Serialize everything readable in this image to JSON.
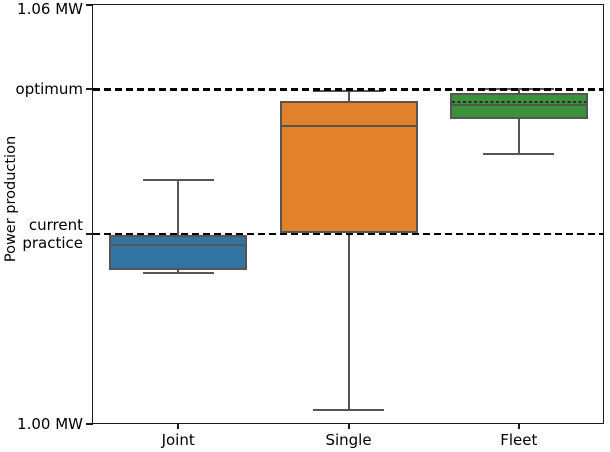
{
  "chart_data": {
    "type": "box",
    "title": "",
    "ylabel": "Power production",
    "xlabel": "",
    "unit": "MW",
    "ylim": [
      1.0,
      1.06
    ],
    "grid": false,
    "y_axis_ticks": [
      {
        "label": "1.06 MW",
        "value": 1.06
      },
      {
        "label": "optimum",
        "value": 1.0479
      },
      {
        "label": "current\npractice",
        "value": 1.0272
      },
      {
        "label": "1.00 MW",
        "value": 1.0
      }
    ],
    "reference_lines": [
      {
        "name": "optimum",
        "value": 1.0479,
        "style": "dashed",
        "color": "#000000"
      },
      {
        "name": "current-practice",
        "value": 1.0272,
        "style": "dashed",
        "color": "#000000"
      }
    ],
    "categories": [
      "Joint",
      "Single",
      "Fleet"
    ],
    "series": [
      {
        "name": "Joint",
        "color": "#3274a1",
        "whisker_low": 1.0216,
        "q1": 1.022,
        "median": 1.0256,
        "q3": 1.0271,
        "whisker_high": 1.0349
      },
      {
        "name": "Single",
        "color": "#e1812c",
        "whisker_low": 1.002,
        "q1": 1.0274,
        "median": 1.0427,
        "q3": 1.0463,
        "whisker_high": 1.0477
      },
      {
        "name": "Fleet",
        "color": "#3a923a",
        "whisker_low": 1.0387,
        "q1": 1.0437,
        "median": 1.0457,
        "q3": 1.0474,
        "whisker_high": 1.0479,
        "mean": 1.0461
      }
    ],
    "edge_color": "#555555",
    "legend": null
  }
}
